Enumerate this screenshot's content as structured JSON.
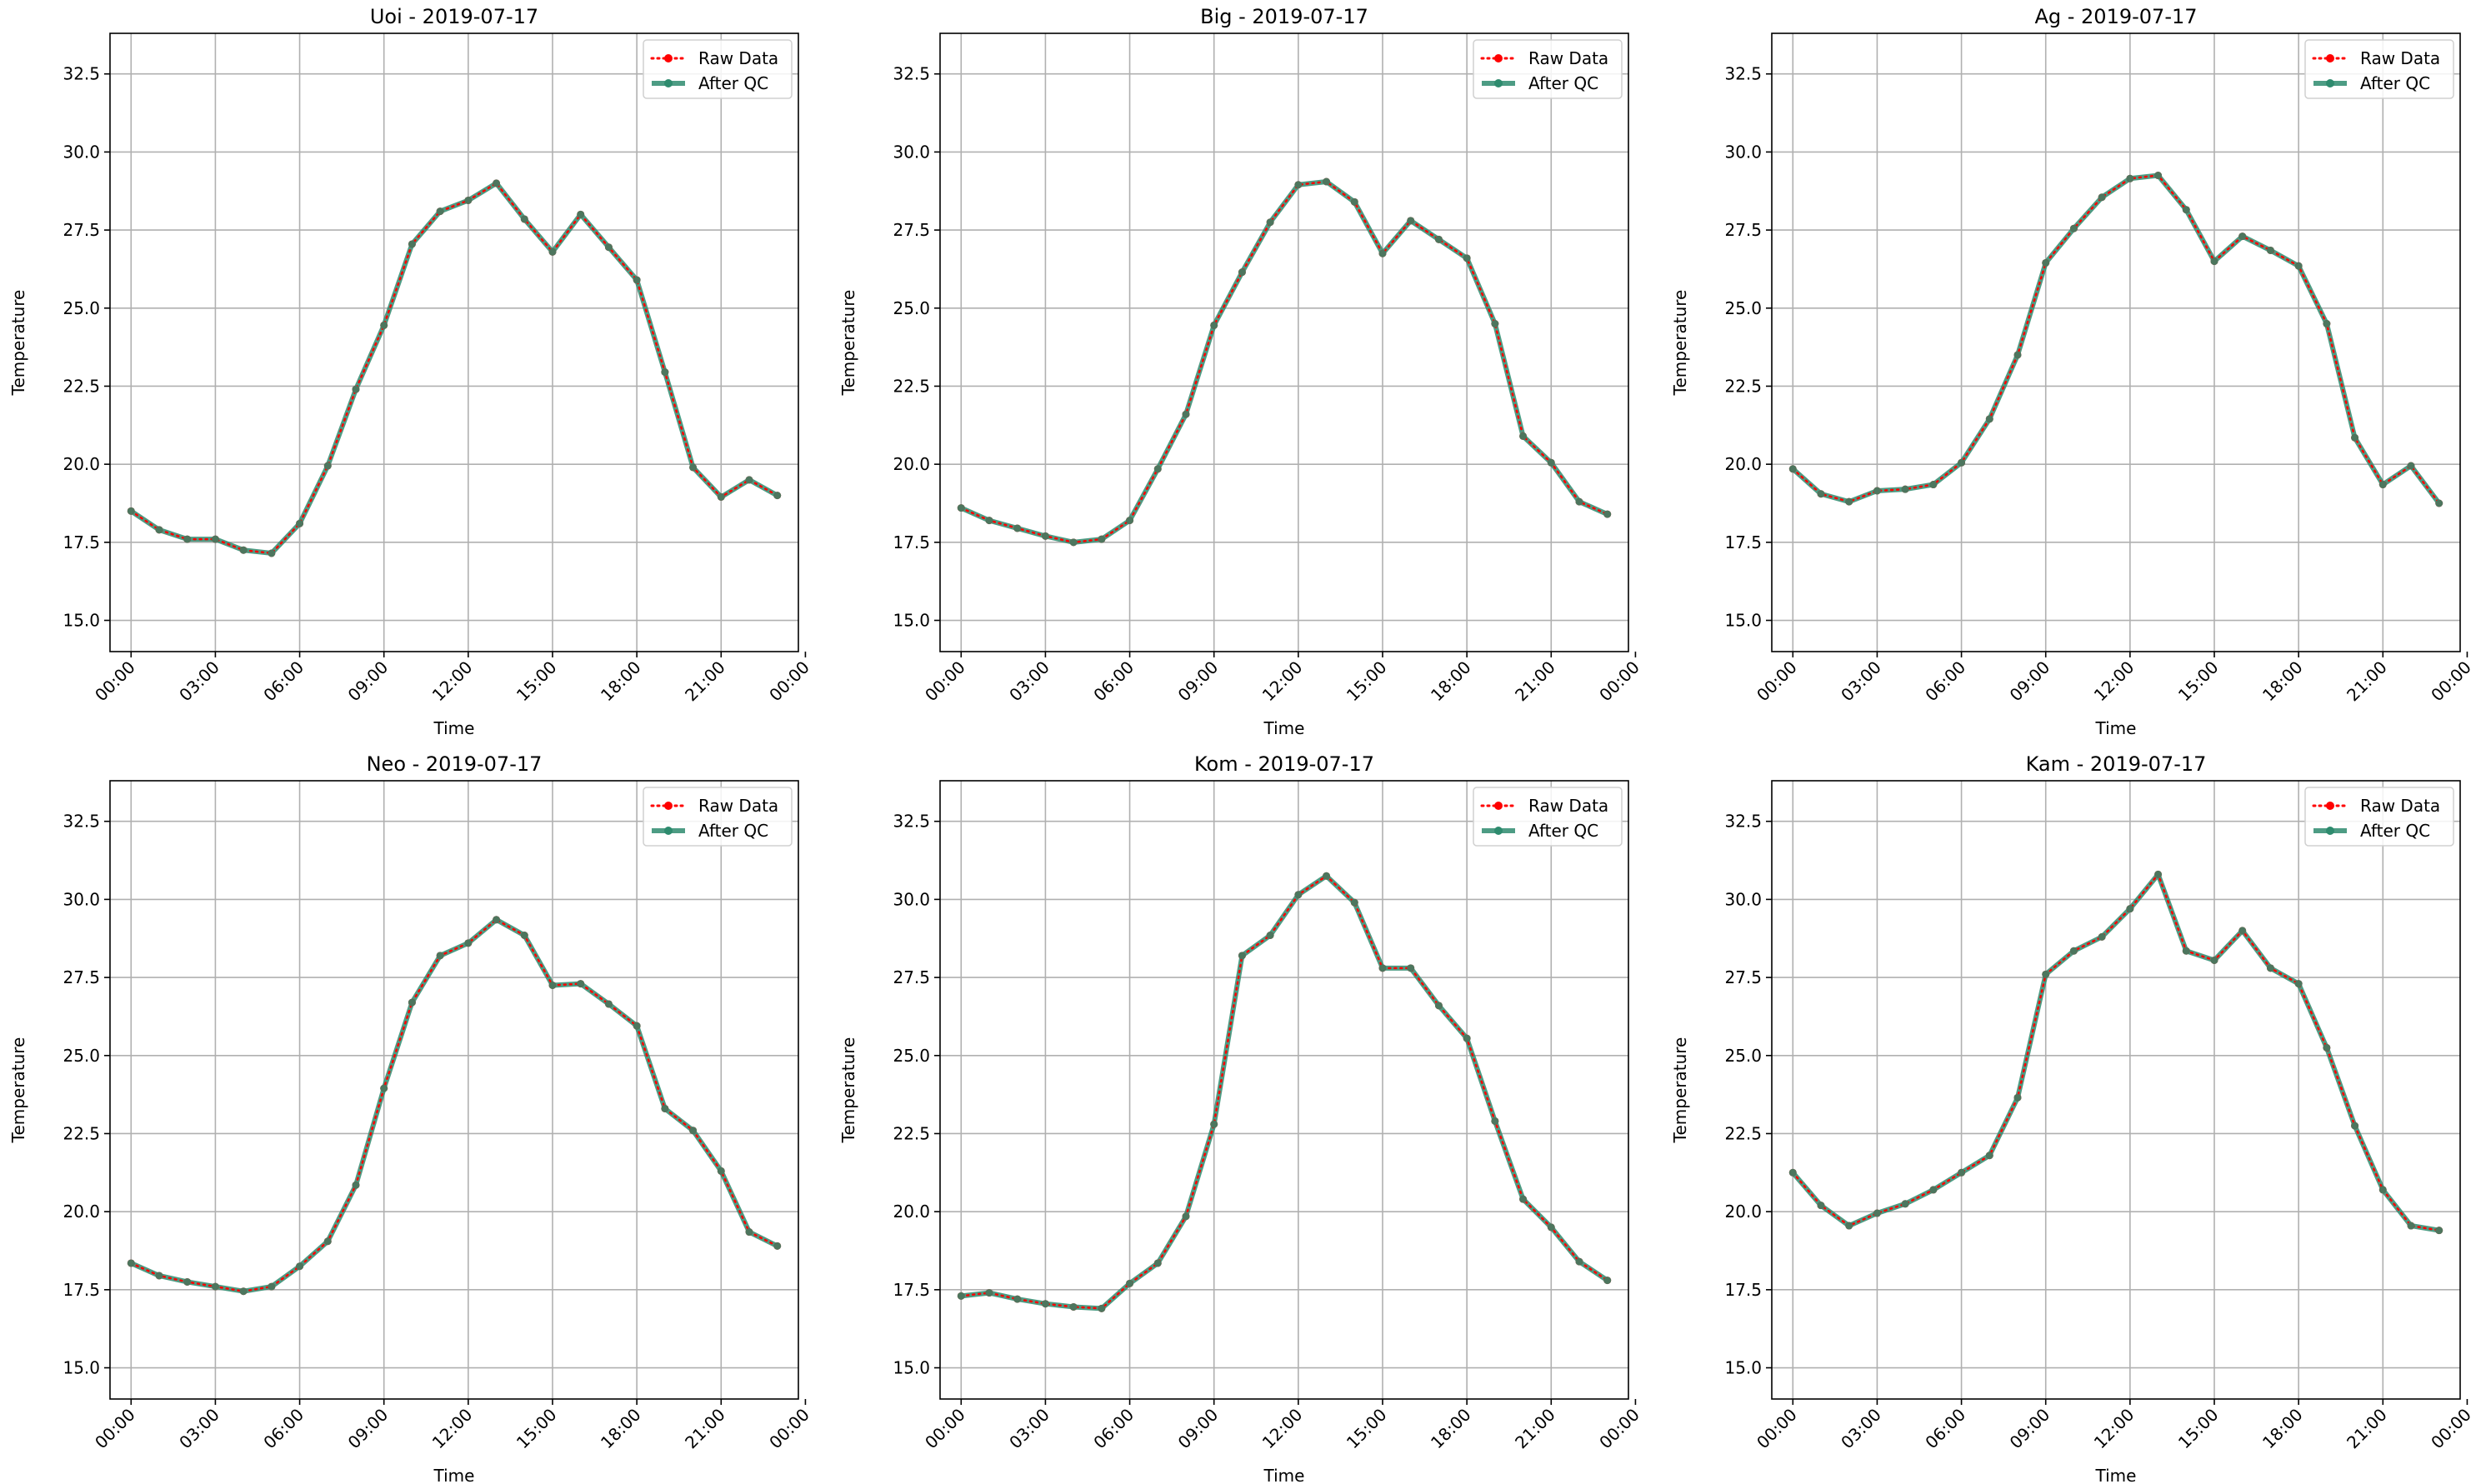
{
  "chart_data": [
    {
      "type": "line",
      "title": "Uoi - 2019-07-17",
      "xlabel": "Time",
      "ylabel": "Temperature",
      "xlim": [
        -0.75,
        23.75
      ],
      "ylim": [
        14.0,
        33.8
      ],
      "x_ticks": [
        0,
        3,
        6,
        9,
        12,
        15,
        18,
        21,
        24
      ],
      "x_tick_labels": [
        "00:00",
        "03:00",
        "06:00",
        "09:00",
        "12:00",
        "15:00",
        "18:00",
        "21:00",
        "00:00"
      ],
      "y_ticks": [
        15.0,
        17.5,
        20.0,
        22.5,
        25.0,
        27.5,
        30.0,
        32.5
      ],
      "y_tick_labels": [
        "15.0",
        "17.5",
        "20.0",
        "22.5",
        "25.0",
        "27.5",
        "30.0",
        "32.5"
      ],
      "grid": true,
      "legend_position": "top-right",
      "x": [
        0,
        1,
        2,
        3,
        4,
        5,
        6,
        7,
        8,
        9,
        10,
        11,
        12,
        13,
        14,
        15,
        16,
        17,
        18,
        19,
        20,
        21,
        22,
        23
      ],
      "series": [
        {
          "name": "Raw Data",
          "color": "#ff0000",
          "style": "dotted",
          "values": [
            18.5,
            17.9,
            17.6,
            17.6,
            17.25,
            17.15,
            18.1,
            19.95,
            22.4,
            24.45,
            27.05,
            28.1,
            28.45,
            29.0,
            27.85,
            26.8,
            28.0,
            26.95,
            25.9,
            22.95,
            19.9,
            18.95,
            19.5,
            19.0
          ]
        },
        {
          "name": "After QC",
          "color": "#2e8b6e",
          "style": "solid",
          "values": [
            18.5,
            17.9,
            17.6,
            17.6,
            17.25,
            17.15,
            18.1,
            19.95,
            22.4,
            24.45,
            27.05,
            28.1,
            28.45,
            29.0,
            27.85,
            26.8,
            28.0,
            26.95,
            25.9,
            22.95,
            19.9,
            18.95,
            19.5,
            19.0
          ]
        }
      ]
    },
    {
      "type": "line",
      "title": "Big - 2019-07-17",
      "xlabel": "Time",
      "ylabel": "Temperature",
      "xlim": [
        -0.75,
        23.75
      ],
      "ylim": [
        14.0,
        33.8
      ],
      "x_ticks": [
        0,
        3,
        6,
        9,
        12,
        15,
        18,
        21,
        24
      ],
      "x_tick_labels": [
        "00:00",
        "03:00",
        "06:00",
        "09:00",
        "12:00",
        "15:00",
        "18:00",
        "21:00",
        "00:00"
      ],
      "y_ticks": [
        15.0,
        17.5,
        20.0,
        22.5,
        25.0,
        27.5,
        30.0,
        32.5
      ],
      "y_tick_labels": [
        "15.0",
        "17.5",
        "20.0",
        "22.5",
        "25.0",
        "27.5",
        "30.0",
        "32.5"
      ],
      "grid": true,
      "legend_position": "top-right",
      "x": [
        0,
        1,
        2,
        3,
        4,
        5,
        6,
        7,
        8,
        9,
        10,
        11,
        12,
        13,
        14,
        15,
        16,
        17,
        18,
        19,
        20,
        21,
        22,
        23
      ],
      "series": [
        {
          "name": "Raw Data",
          "color": "#ff0000",
          "style": "dotted",
          "values": [
            18.6,
            18.2,
            17.95,
            17.7,
            17.5,
            17.6,
            18.2,
            19.85,
            21.6,
            24.45,
            26.15,
            27.75,
            28.95,
            29.05,
            28.4,
            26.75,
            27.8,
            27.2,
            26.6,
            24.5,
            20.9,
            20.05,
            18.8,
            18.4
          ]
        },
        {
          "name": "After QC",
          "color": "#2e8b6e",
          "style": "solid",
          "values": [
            18.6,
            18.2,
            17.95,
            17.7,
            17.5,
            17.6,
            18.2,
            19.85,
            21.6,
            24.45,
            26.15,
            27.75,
            28.95,
            29.05,
            28.4,
            26.75,
            27.8,
            27.2,
            26.6,
            24.5,
            20.9,
            20.05,
            18.8,
            18.4
          ]
        }
      ]
    },
    {
      "type": "line",
      "title": "Ag - 2019-07-17",
      "xlabel": "Time",
      "ylabel": "Temperature",
      "xlim": [
        -0.75,
        23.75
      ],
      "ylim": [
        14.0,
        33.8
      ],
      "x_ticks": [
        0,
        3,
        6,
        9,
        12,
        15,
        18,
        21,
        24
      ],
      "x_tick_labels": [
        "00:00",
        "03:00",
        "06:00",
        "09:00",
        "12:00",
        "15:00",
        "18:00",
        "21:00",
        "00:00"
      ],
      "y_ticks": [
        15.0,
        17.5,
        20.0,
        22.5,
        25.0,
        27.5,
        30.0,
        32.5
      ],
      "y_tick_labels": [
        "15.0",
        "17.5",
        "20.0",
        "22.5",
        "25.0",
        "27.5",
        "30.0",
        "32.5"
      ],
      "grid": true,
      "legend_position": "top-right",
      "x": [
        0,
        1,
        2,
        3,
        4,
        5,
        6,
        7,
        8,
        9,
        10,
        11,
        12,
        13,
        14,
        15,
        16,
        17,
        18,
        19,
        20,
        21,
        22,
        23
      ],
      "series": [
        {
          "name": "Raw Data",
          "color": "#ff0000",
          "style": "dotted",
          "values": [
            19.85,
            19.05,
            18.8,
            19.15,
            19.2,
            19.35,
            20.05,
            21.45,
            23.5,
            26.45,
            27.55,
            28.55,
            29.15,
            29.25,
            28.15,
            26.5,
            27.3,
            26.85,
            26.35,
            24.5,
            20.85,
            19.35,
            19.95,
            18.75
          ]
        },
        {
          "name": "After QC",
          "color": "#2e8b6e",
          "style": "solid",
          "values": [
            19.85,
            19.05,
            18.8,
            19.15,
            19.2,
            19.35,
            20.05,
            21.45,
            23.5,
            26.45,
            27.55,
            28.55,
            29.15,
            29.25,
            28.15,
            26.5,
            27.3,
            26.85,
            26.35,
            24.5,
            20.85,
            19.35,
            19.95,
            18.75
          ]
        }
      ]
    },
    {
      "type": "line",
      "title": "Neo - 2019-07-17",
      "xlabel": "Time",
      "ylabel": "Temperature",
      "xlim": [
        -0.75,
        23.75
      ],
      "ylim": [
        14.0,
        33.8
      ],
      "x_ticks": [
        0,
        3,
        6,
        9,
        12,
        15,
        18,
        21,
        24
      ],
      "x_tick_labels": [
        "00:00",
        "03:00",
        "06:00",
        "09:00",
        "12:00",
        "15:00",
        "18:00",
        "21:00",
        "00:00"
      ],
      "y_ticks": [
        15.0,
        17.5,
        20.0,
        22.5,
        25.0,
        27.5,
        30.0,
        32.5
      ],
      "y_tick_labels": [
        "15.0",
        "17.5",
        "20.0",
        "22.5",
        "25.0",
        "27.5",
        "30.0",
        "32.5"
      ],
      "grid": true,
      "legend_position": "top-right",
      "x": [
        0,
        1,
        2,
        3,
        4,
        5,
        6,
        7,
        8,
        9,
        10,
        11,
        12,
        13,
        14,
        15,
        16,
        17,
        18,
        19,
        20,
        21,
        22,
        23
      ],
      "series": [
        {
          "name": "Raw Data",
          "color": "#ff0000",
          "style": "dotted",
          "values": [
            18.35,
            17.95,
            17.75,
            17.6,
            17.45,
            17.6,
            18.25,
            19.05,
            20.85,
            23.95,
            26.7,
            28.2,
            28.6,
            29.35,
            28.85,
            27.25,
            27.3,
            26.65,
            25.95,
            23.3,
            22.6,
            21.3,
            19.35,
            18.9
          ]
        },
        {
          "name": "After QC",
          "color": "#2e8b6e",
          "style": "solid",
          "values": [
            18.35,
            17.95,
            17.75,
            17.6,
            17.45,
            17.6,
            18.25,
            19.05,
            20.85,
            23.95,
            26.7,
            28.2,
            28.6,
            29.35,
            28.85,
            27.25,
            27.3,
            26.65,
            25.95,
            23.3,
            22.6,
            21.3,
            19.35,
            18.9
          ]
        }
      ]
    },
    {
      "type": "line",
      "title": "Kom - 2019-07-17",
      "xlabel": "Time",
      "ylabel": "Temperature",
      "xlim": [
        -0.75,
        23.75
      ],
      "ylim": [
        14.0,
        33.8
      ],
      "x_ticks": [
        0,
        3,
        6,
        9,
        12,
        15,
        18,
        21,
        24
      ],
      "x_tick_labels": [
        "00:00",
        "03:00",
        "06:00",
        "09:00",
        "12:00",
        "15:00",
        "18:00",
        "21:00",
        "00:00"
      ],
      "y_ticks": [
        15.0,
        17.5,
        20.0,
        22.5,
        25.0,
        27.5,
        30.0,
        32.5
      ],
      "y_tick_labels": [
        "15.0",
        "17.5",
        "20.0",
        "22.5",
        "25.0",
        "27.5",
        "30.0",
        "32.5"
      ],
      "grid": true,
      "legend_position": "top-right",
      "x": [
        0,
        1,
        2,
        3,
        4,
        5,
        6,
        7,
        8,
        9,
        10,
        11,
        12,
        13,
        14,
        15,
        16,
        17,
        18,
        19,
        20,
        21,
        22,
        23
      ],
      "series": [
        {
          "name": "Raw Data",
          "color": "#ff0000",
          "style": "dotted",
          "values": [
            17.3,
            17.4,
            17.2,
            17.05,
            16.95,
            16.9,
            17.7,
            18.35,
            19.85,
            22.8,
            28.2,
            28.85,
            30.15,
            30.75,
            29.9,
            27.8,
            27.8,
            26.6,
            25.55,
            22.9,
            20.4,
            19.5,
            18.4,
            17.8
          ]
        },
        {
          "name": "After QC",
          "color": "#2e8b6e",
          "style": "solid",
          "values": [
            17.3,
            17.4,
            17.2,
            17.05,
            16.95,
            16.9,
            17.7,
            18.35,
            19.85,
            22.8,
            28.2,
            28.85,
            30.15,
            30.75,
            29.9,
            27.8,
            27.8,
            26.6,
            25.55,
            22.9,
            20.4,
            19.5,
            18.4,
            17.8
          ]
        }
      ]
    },
    {
      "type": "line",
      "title": "Kam - 2019-07-17",
      "xlabel": "Time",
      "ylabel": "Temperature",
      "xlim": [
        -0.75,
        23.75
      ],
      "ylim": [
        14.0,
        33.8
      ],
      "x_ticks": [
        0,
        3,
        6,
        9,
        12,
        15,
        18,
        21,
        24
      ],
      "x_tick_labels": [
        "00:00",
        "03:00",
        "06:00",
        "09:00",
        "12:00",
        "15:00",
        "18:00",
        "21:00",
        "00:00"
      ],
      "y_ticks": [
        15.0,
        17.5,
        20.0,
        22.5,
        25.0,
        27.5,
        30.0,
        32.5
      ],
      "y_tick_labels": [
        "15.0",
        "17.5",
        "20.0",
        "22.5",
        "25.0",
        "27.5",
        "30.0",
        "32.5"
      ],
      "grid": true,
      "legend_position": "top-right",
      "x": [
        0,
        1,
        2,
        3,
        4,
        5,
        6,
        7,
        8,
        9,
        10,
        11,
        12,
        13,
        14,
        15,
        16,
        17,
        18,
        19,
        20,
        21,
        22,
        23
      ],
      "series": [
        {
          "name": "Raw Data",
          "color": "#ff0000",
          "style": "dotted",
          "values": [
            21.25,
            20.2,
            19.55,
            19.95,
            20.25,
            20.7,
            21.25,
            21.8,
            23.65,
            27.6,
            28.35,
            28.8,
            29.7,
            30.8,
            28.35,
            28.05,
            29.0,
            27.8,
            27.3,
            25.25,
            22.75,
            20.7,
            19.55,
            19.4
          ]
        },
        {
          "name": "After QC",
          "color": "#2e8b6e",
          "style": "solid",
          "values": [
            21.25,
            20.2,
            19.55,
            19.95,
            20.25,
            20.7,
            21.25,
            21.8,
            23.65,
            27.6,
            28.35,
            28.8,
            29.7,
            30.8,
            28.35,
            28.05,
            29.0,
            27.8,
            27.3,
            25.25,
            22.75,
            20.7,
            19.55,
            19.4
          ]
        }
      ]
    }
  ]
}
